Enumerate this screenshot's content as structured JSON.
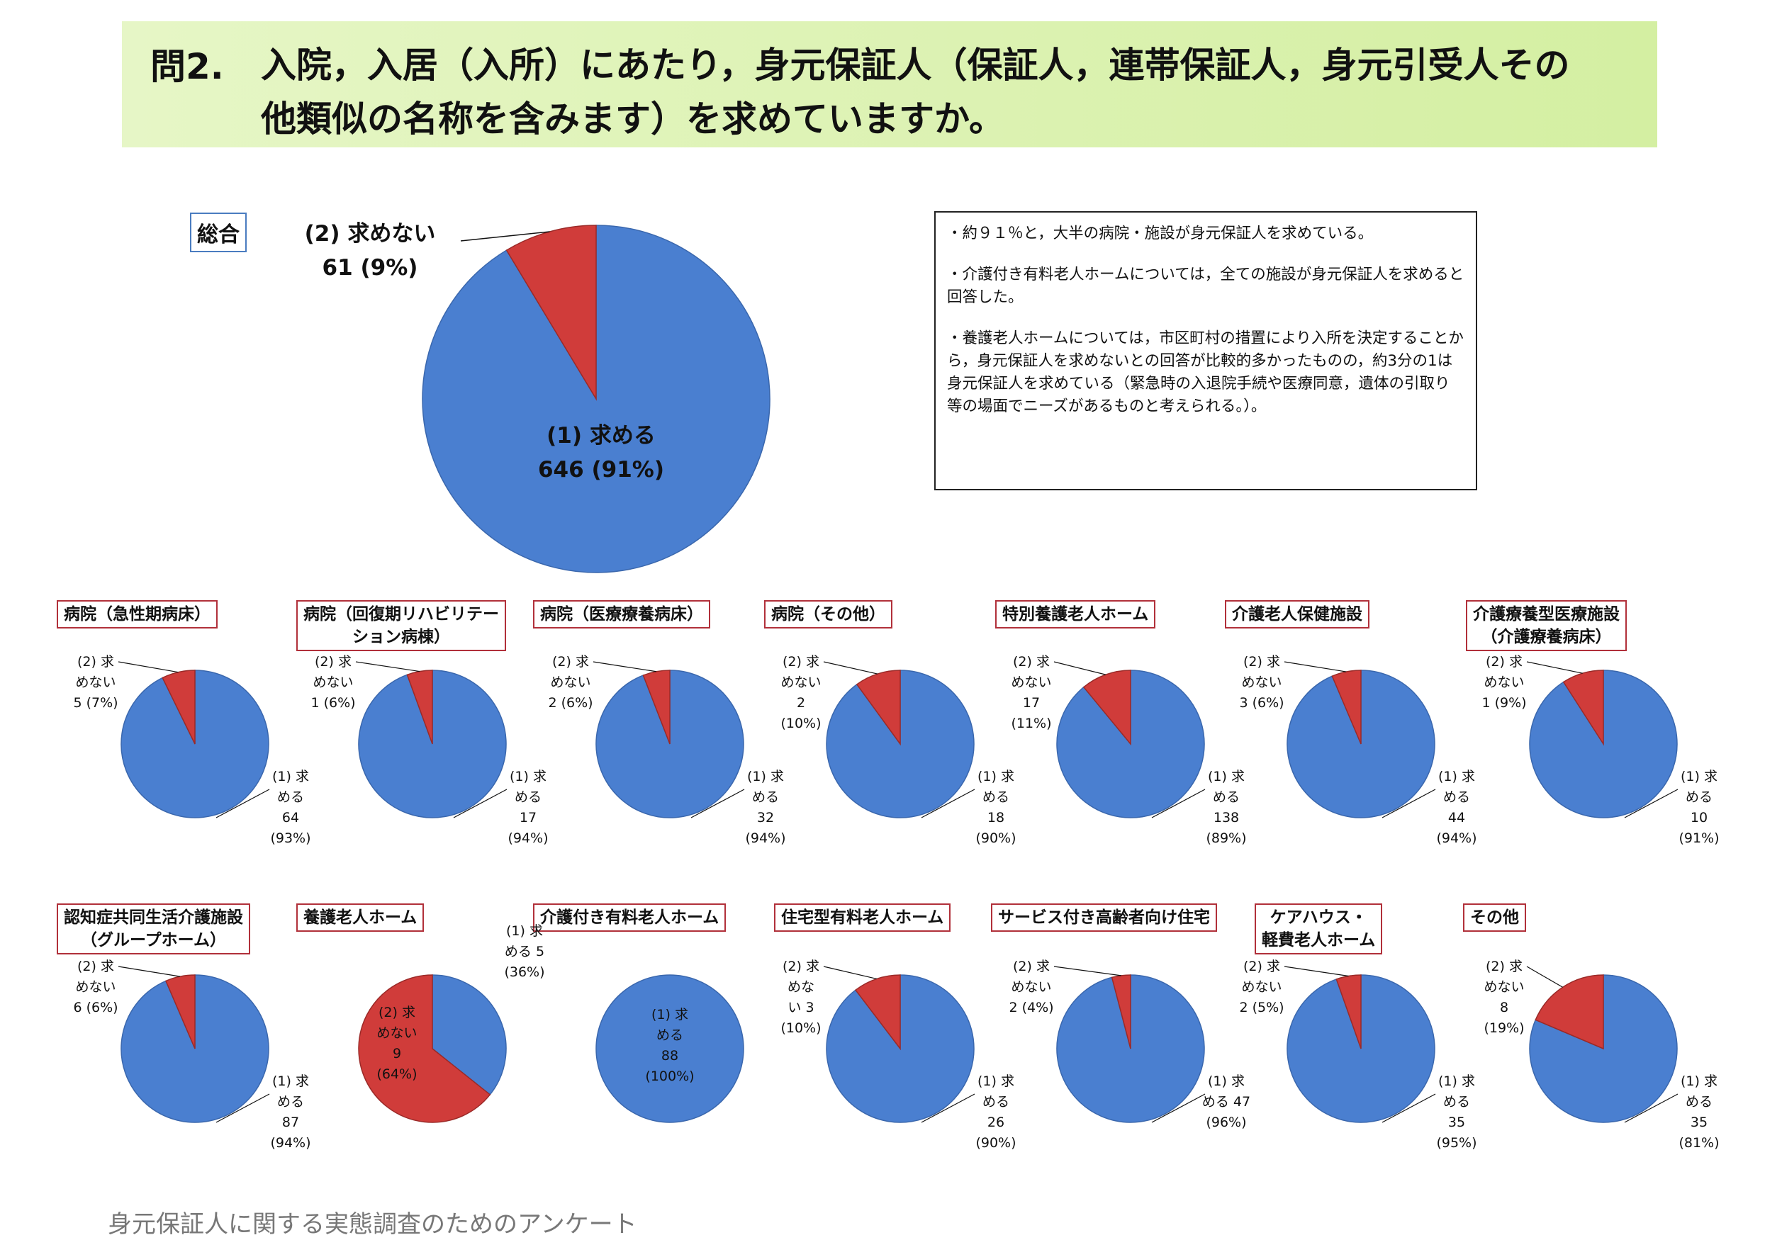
{
  "title": {
    "number": "問2.",
    "line1": "入院，入居（入所）にあたり，身元保証人（保証人，連帯保証人，身元引受人その",
    "line2": "他類似の名称を含みます）を求めていますか。"
  },
  "main_label": "総合",
  "notes": [
    "・約９１％と，大半の病院・施設が身元保証人を求めている。",
    "・介護付き有料老人ホームについては，全ての施設が身元保証人を求めると回答した。",
    "・養護老人ホームについては，市区町村の措置により入所を決定することから，身元保証人を求めないとの回答が比較的多かったものの，約3分の1は身元保証人を求めている（緊急時の入退院手続や医療同意，遺体の引取り等の場面でニーズがあるものと考えられる。）。"
  ],
  "footer": "身元保証人に関する実態調査のためのアンケート",
  "colors": {
    "yes": "#4a7fd0",
    "no": "#d03c3a",
    "label_border_main": "#4a7cc0",
    "label_border_sub": "#b1303a"
  },
  "chart_data": [
    {
      "type": "pie",
      "title": "総合",
      "slices": [
        {
          "label": "(1) 求める",
          "value": 646,
          "pct": "91%",
          "text": [
            "(1) 求める",
            "646 (91%)"
          ]
        },
        {
          "label": "(2) 求めない",
          "value": 61,
          "pct": "9%",
          "text": [
            "(2) 求めない",
            "61 (9%)"
          ]
        }
      ]
    },
    {
      "type": "pie",
      "title": [
        "病院（急性期病床）"
      ],
      "slices": [
        {
          "label": "(1) 求める",
          "value": 64,
          "pct": "93%",
          "text": [
            "(1) 求",
            "める",
            "64",
            "(93%)"
          ]
        },
        {
          "label": "(2) 求めない",
          "value": 5,
          "pct": "7%",
          "text": [
            "(2) 求",
            "めない",
            "5 (7%)"
          ]
        }
      ]
    },
    {
      "type": "pie",
      "title": [
        "病院（回復期リハビリテー",
        "ション病棟）"
      ],
      "slices": [
        {
          "label": "(1) 求める",
          "value": 17,
          "pct": "94%",
          "text": [
            "(1) 求",
            "める",
            "17",
            "(94%)"
          ]
        },
        {
          "label": "(2) 求めない",
          "value": 1,
          "pct": "6%",
          "text": [
            "(2) 求",
            "めない",
            "1 (6%)"
          ]
        }
      ]
    },
    {
      "type": "pie",
      "title": [
        "病院（医療療養病床）"
      ],
      "slices": [
        {
          "label": "(1) 求める",
          "value": 32,
          "pct": "94%",
          "text": [
            "(1) 求",
            "める",
            "32",
            "(94%)"
          ]
        },
        {
          "label": "(2) 求めない",
          "value": 2,
          "pct": "6%",
          "text": [
            "(2) 求",
            "めない",
            "2 (6%)"
          ]
        }
      ]
    },
    {
      "type": "pie",
      "title": [
        "病院（その他）"
      ],
      "slices": [
        {
          "label": "(1) 求める",
          "value": 18,
          "pct": "90%",
          "text": [
            "(1) 求",
            "める",
            "18",
            "(90%)"
          ]
        },
        {
          "label": "(2) 求めない",
          "value": 2,
          "pct": "10%",
          "text": [
            "(2) 求",
            "めない",
            "2",
            "(10%)"
          ]
        }
      ]
    },
    {
      "type": "pie",
      "title": [
        "特別養護老人ホーム"
      ],
      "slices": [
        {
          "label": "(1) 求める",
          "value": 138,
          "pct": "89%",
          "text": [
            "(1) 求",
            "める",
            "138",
            "(89%)"
          ]
        },
        {
          "label": "(2) 求めない",
          "value": 17,
          "pct": "11%",
          "text": [
            "(2) 求",
            "めない",
            "17",
            "(11%)"
          ]
        }
      ]
    },
    {
      "type": "pie",
      "title": [
        "介護老人保健施設"
      ],
      "slices": [
        {
          "label": "(1) 求める",
          "value": 44,
          "pct": "94%",
          "text": [
            "(1) 求",
            "める",
            "44",
            "(94%)"
          ]
        },
        {
          "label": "(2) 求めない",
          "value": 3,
          "pct": "6%",
          "text": [
            "(2) 求",
            "めない",
            "3 (6%)"
          ]
        }
      ]
    },
    {
      "type": "pie",
      "title": [
        "介護療養型医療施設",
        "（介護療養病床）"
      ],
      "slices": [
        {
          "label": "(1) 求める",
          "value": 10,
          "pct": "91%",
          "text": [
            "(1) 求",
            "める",
            "10",
            "(91%)"
          ]
        },
        {
          "label": "(2) 求めない",
          "value": 1,
          "pct": "9%",
          "text": [
            "(2) 求",
            "めない",
            "1 (9%)"
          ]
        }
      ]
    },
    {
      "type": "pie",
      "title": [
        "認知症共同生活介護施設",
        "（グループホーム）"
      ],
      "slices": [
        {
          "label": "(1) 求める",
          "value": 87,
          "pct": "94%",
          "text": [
            "(1) 求",
            "める",
            "87",
            "(94%)"
          ]
        },
        {
          "label": "(2) 求めない",
          "value": 6,
          "pct": "6%",
          "text": [
            "(2) 求",
            "めない",
            "6 (6%)"
          ]
        }
      ]
    },
    {
      "type": "pie",
      "title": [
        "養護老人ホーム"
      ],
      "slices": [
        {
          "label": "(1) 求める",
          "value": 5,
          "pct": "36%",
          "text": [
            "(1) 求",
            "める 5",
            "(36%)"
          ]
        },
        {
          "label": "(2) 求めない",
          "value": 9,
          "pct": "64%",
          "text": [
            "(2) 求",
            "めない",
            "9",
            "(64%)"
          ]
        }
      ]
    },
    {
      "type": "pie",
      "title": [
        "介護付き有料老人ホーム"
      ],
      "slices": [
        {
          "label": "(1) 求める",
          "value": 88,
          "pct": "100%",
          "text": [
            "(1) 求",
            "める",
            "88",
            "(100%)"
          ]
        }
      ]
    },
    {
      "type": "pie",
      "title": [
        "住宅型有料老人ホーム"
      ],
      "slices": [
        {
          "label": "(1) 求める",
          "value": 26,
          "pct": "90%",
          "text": [
            "(1) 求",
            "める",
            "26",
            "(90%)"
          ]
        },
        {
          "label": "(2) 求めない",
          "value": 3,
          "pct": "10%",
          "text": [
            "(2) 求",
            "めな",
            "い 3",
            "(10%)"
          ]
        }
      ]
    },
    {
      "type": "pie",
      "title": [
        "サービス付き高齢者向け住宅"
      ],
      "slices": [
        {
          "label": "(1) 求める",
          "value": 47,
          "pct": "96%",
          "text": [
            "(1) 求",
            "める 47",
            "(96%)"
          ]
        },
        {
          "label": "(2) 求めない",
          "value": 2,
          "pct": "4%",
          "text": [
            "(2) 求",
            "めない",
            "2 (4%)"
          ]
        }
      ]
    },
    {
      "type": "pie",
      "title": [
        "ケアハウス・",
        "軽費老人ホーム"
      ],
      "slices": [
        {
          "label": "(1) 求める",
          "value": 35,
          "pct": "95%",
          "text": [
            "(1) 求",
            "める",
            "35",
            "(95%)"
          ]
        },
        {
          "label": "(2) 求めない",
          "value": 2,
          "pct": "5%",
          "text": [
            "(2) 求",
            "めない",
            "2 (5%)"
          ]
        }
      ]
    },
    {
      "type": "pie",
      "title": [
        "その他"
      ],
      "slices": [
        {
          "label": "(1) 求める",
          "value": 35,
          "pct": "81%",
          "text": [
            "(1) 求",
            "める",
            "35",
            "(81%)"
          ]
        },
        {
          "label": "(2) 求めない",
          "value": 8,
          "pct": "19%",
          "text": [
            "(2) 求",
            "めない",
            "8",
            "(19%)"
          ]
        }
      ]
    }
  ]
}
